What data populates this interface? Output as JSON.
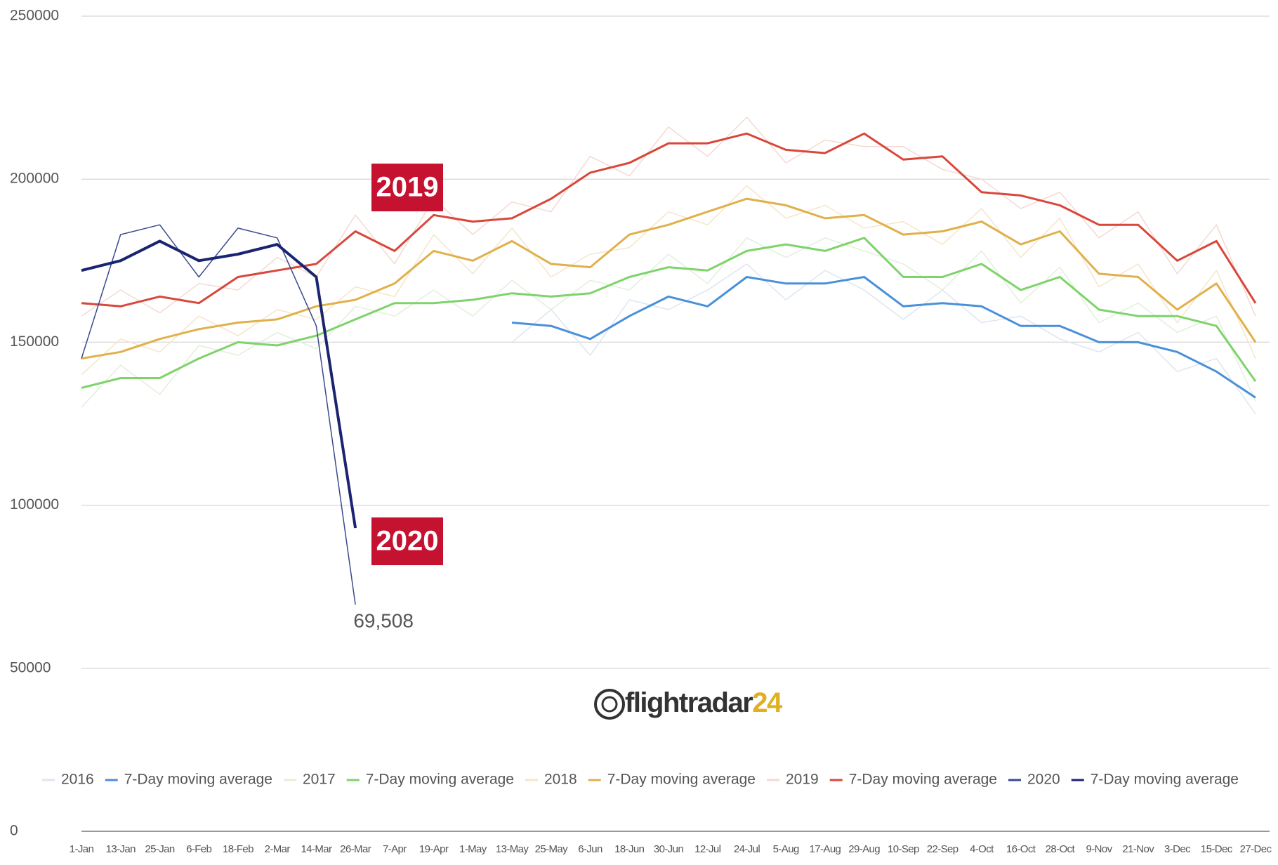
{
  "chart_data": {
    "type": "line",
    "categories": [
      "1-Jan",
      "13-Jan",
      "25-Jan",
      "6-Feb",
      "18-Feb",
      "2-Mar",
      "14-Mar",
      "26-Mar",
      "7-Apr",
      "19-Apr",
      "1-May",
      "13-May",
      "25-May",
      "6-Jun",
      "18-Jun",
      "30-Jun",
      "12-Jul",
      "24-Jul",
      "5-Aug",
      "17-Aug",
      "29-Aug",
      "10-Sep",
      "22-Sep",
      "4-Oct",
      "16-Oct",
      "28-Oct",
      "9-Nov",
      "21-Nov",
      "3-Dec",
      "15-Dec",
      "27-Dec"
    ],
    "ylim": [
      0,
      250000
    ],
    "yticks": [
      0,
      50000,
      100000,
      150000,
      200000,
      250000
    ],
    "grid": true,
    "legend": "bottom",
    "series": [
      {
        "name": "2016",
        "color": "#dde6f2",
        "values": [
          null,
          null,
          null,
          null,
          null,
          null,
          null,
          null,
          null,
          null,
          null,
          150000,
          160000,
          146000,
          163000,
          160000,
          166000,
          174000,
          163000,
          172000,
          166000,
          157000,
          166000,
          156000,
          158000,
          151000,
          147000,
          153000,
          141000,
          145000,
          128000
        ]
      },
      {
        "name": "7-Day moving average",
        "color": "#4a90d9",
        "values": [
          null,
          null,
          null,
          null,
          null,
          null,
          null,
          null,
          null,
          null,
          null,
          156000,
          155000,
          151000,
          158000,
          164000,
          161000,
          170000,
          168000,
          168000,
          170000,
          161000,
          162000,
          161000,
          155000,
          155000,
          150000,
          150000,
          147000,
          141000,
          133000
        ]
      },
      {
        "name": "2017",
        "color": "#e1f0da",
        "values": [
          130000,
          143000,
          134000,
          149000,
          146000,
          153000,
          148000,
          161000,
          158000,
          166000,
          158000,
          169000,
          160000,
          169000,
          166000,
          177000,
          168000,
          182000,
          176000,
          182000,
          178000,
          174000,
          166000,
          178000,
          162000,
          173000,
          156000,
          162000,
          153000,
          158000,
          132000
        ]
      },
      {
        "name": "7-Day moving average",
        "color": "#7ed36b",
        "values": [
          136000,
          139000,
          139000,
          145000,
          150000,
          149000,
          152000,
          157000,
          162000,
          162000,
          163000,
          165000,
          164000,
          165000,
          170000,
          173000,
          172000,
          178000,
          180000,
          178000,
          182000,
          170000,
          170000,
          174000,
          166000,
          170000,
          160000,
          158000,
          158000,
          155000,
          138000
        ]
      },
      {
        "name": "2018",
        "color": "#f5e6c8",
        "values": [
          140000,
          151000,
          147000,
          158000,
          152000,
          160000,
          157000,
          167000,
          164000,
          183000,
          171000,
          185000,
          170000,
          177000,
          179000,
          190000,
          186000,
          198000,
          188000,
          192000,
          185000,
          187000,
          180000,
          191000,
          176000,
          188000,
          167000,
          174000,
          156000,
          172000,
          145000
        ]
      },
      {
        "name": "7-Day moving average",
        "color": "#e0b04a",
        "values": [
          145000,
          147000,
          151000,
          154000,
          156000,
          157000,
          161000,
          163000,
          168000,
          178000,
          175000,
          181000,
          174000,
          173000,
          183000,
          186000,
          190000,
          194000,
          192000,
          188000,
          189000,
          183000,
          184000,
          187000,
          180000,
          184000,
          171000,
          170000,
          160000,
          168000,
          150000
        ]
      },
      {
        "name": "2019",
        "color": "#f5d9d2",
        "values": [
          158000,
          166000,
          159000,
          168000,
          166000,
          176000,
          170000,
          189000,
          174000,
          194000,
          183000,
          193000,
          190000,
          207000,
          201000,
          216000,
          207000,
          219000,
          205000,
          212000,
          210000,
          210000,
          203000,
          200000,
          191000,
          196000,
          182000,
          190000,
          171000,
          186000,
          158000
        ]
      },
      {
        "name": "7-Day moving average",
        "color": "#d9473b",
        "values": [
          162000,
          161000,
          164000,
          162000,
          170000,
          172000,
          174000,
          184000,
          178000,
          189000,
          187000,
          188000,
          194000,
          202000,
          205000,
          211000,
          211000,
          214000,
          209000,
          208000,
          214000,
          206000,
          207000,
          196000,
          195000,
          192000,
          186000,
          186000,
          175000,
          181000,
          162000
        ]
      },
      {
        "name": "2020",
        "color": "#3a4a8c",
        "values": [
          145000,
          183000,
          186000,
          170000,
          185000,
          182000,
          155000,
          69508,
          null,
          null,
          null,
          null,
          null,
          null,
          null,
          null,
          null,
          null,
          null,
          null,
          null,
          null,
          null,
          null,
          null,
          null,
          null,
          null,
          null,
          null,
          null
        ],
        "value_labels": [
          null,
          null,
          null,
          null,
          null,
          null,
          null,
          "69,508",
          null,
          null,
          null,
          null,
          null,
          null,
          null,
          null,
          null,
          null,
          null,
          null,
          null,
          null,
          null,
          null,
          null,
          null,
          null,
          null,
          null,
          null,
          null
        ]
      },
      {
        "name": "7-Day moving average",
        "color": "#1a2470",
        "values": [
          172000,
          175000,
          181000,
          175000,
          177000,
          180000,
          170000,
          93000,
          null,
          null,
          null,
          null,
          null,
          null,
          null,
          null,
          null,
          null,
          null,
          null,
          null,
          null,
          null,
          null,
          null,
          null,
          null,
          null,
          null,
          null,
          null
        ]
      }
    ],
    "annotations": [
      "2019",
      "2020"
    ],
    "annotation_color": "#c41230",
    "logo": [
      "flightradar",
      "24"
    ]
  }
}
